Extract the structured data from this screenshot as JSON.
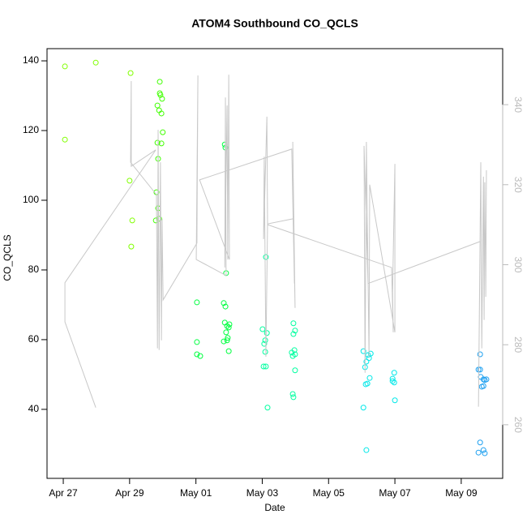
{
  "chart_data": {
    "type": "scatter",
    "title": "ATOM4 Southbound CO_QCLS",
    "xlabel": "Date",
    "ylabel": "CO_QCLS",
    "xlim": [
      -0.49,
      13.25
    ],
    "ylim": [
      20.2,
      143.5
    ],
    "y2lim": [
      246.6,
      354
    ],
    "xticks": [
      {
        "value": 0,
        "label": "Apr 27"
      },
      {
        "value": 2,
        "label": "Apr 29"
      },
      {
        "value": 4,
        "label": "May 01"
      },
      {
        "value": 6,
        "label": "May 03"
      },
      {
        "value": 8,
        "label": "May 05"
      },
      {
        "value": 10,
        "label": "May 07"
      },
      {
        "value": 12,
        "label": "May 09"
      }
    ],
    "yticks": [
      40,
      60,
      80,
      100,
      120,
      140
    ],
    "y2ticks": [
      260,
      280,
      300,
      320,
      340
    ],
    "series": [
      {
        "color": "#80ff00",
        "x": [
          0.05,
          0.05,
          0.98,
          2.03,
          2.0,
          2.08,
          2.05
        ],
        "values": [
          138.4,
          117.4,
          139.5,
          136.5,
          105.6,
          94.2,
          86.7
        ]
      },
      {
        "color": "#40ff00",
        "x": [
          2.91,
          2.91,
          2.93,
          2.98,
          2.84,
          2.89,
          2.96,
          3.0,
          2.96,
          2.84,
          2.86,
          2.81,
          2.86,
          2.89,
          2.79
        ],
        "values": [
          134,
          130.7,
          130.2,
          129.1,
          127.2,
          125.8,
          124.9,
          119.5,
          116.3,
          116.5,
          111.9,
          102.3,
          97.7,
          94.7,
          94.2
        ]
      },
      {
        "color": "#00ff40",
        "x": [
          4.03,
          4.03,
          4.03,
          4.13,
          4.87,
          4.89,
          4.91,
          4.84,
          4.89,
          4.87,
          4.94,
          4.99,
          5.01,
          4.91,
          4.94,
          4.84,
          4.99,
          4.96
        ],
        "values": [
          70.7,
          59.3,
          55.8,
          55.3,
          116,
          115.1,
          79.1,
          70.5,
          69.5,
          64.9,
          63.9,
          63.5,
          64.4,
          62.1,
          59.8,
          59.5,
          56.7,
          60.5
        ]
      },
      {
        "color": "#00ffa0",
        "x": [
          6.11,
          6.01,
          6.14,
          6.09,
          6.06,
          6.09,
          6.04,
          6.11,
          6.16,
          6.94,
          6.99,
          6.94,
          6.89,
          6.97,
          6.99,
          6.92,
          6.99,
          6.92,
          6.94
        ],
        "values": [
          83.7,
          63,
          61.9,
          59.8,
          58.8,
          56.5,
          52.3,
          52.3,
          40.5,
          64.7,
          62.6,
          61.6,
          56.3,
          57,
          55.8,
          55.3,
          51.2,
          44.4,
          43.5
        ]
      },
      {
        "color": "#00e8e8",
        "x": [
          9.05,
          9.14,
          9.22,
          9.19,
          9.27,
          9.1,
          9.24,
          9.17,
          9.12,
          9.05,
          9.14,
          9.93,
          9.98,
          9.93,
          9.98,
          10.0
        ],
        "values": [
          56.7,
          53.7,
          54.7,
          55.6,
          56,
          52.1,
          49,
          47.4,
          47.2,
          40.5,
          28.3,
          48.8,
          50.5,
          48.1,
          47.7,
          42.6
        ]
      },
      {
        "color": "#1ea0f0",
        "x": [
          12.57,
          12.52,
          12.57,
          12.59,
          12.67,
          12.76,
          12.71,
          12.62,
          12.67,
          12.57,
          12.67,
          12.52,
          12.71
        ],
        "values": [
          55.8,
          51.4,
          51.4,
          49.3,
          48.6,
          48.6,
          48.4,
          46.5,
          46.7,
          30.5,
          28.3,
          27.6,
          27.4
        ]
      },
      {
        "type": "line",
        "axis": "y2",
        "color": "#c8c8c8",
        "x": [
          0.98,
          0.05,
          0.05,
          2.79,
          2.05,
          2.05,
          2.03,
          2.81,
          2.84,
          2.86,
          2.89,
          2.93,
          2.96,
          2.98,
          3.01,
          4.03,
          4.06,
          4.01,
          4.91,
          4.89,
          4.87,
          4.94,
          4.96,
          4.99,
          5.01,
          4.11,
          6.89,
          6.97,
          6.92,
          6.99,
          6.94,
          6.16,
          6.11,
          6.06,
          6.04,
          6.14,
          6.16,
          9.9,
          9.95,
          9.93,
          10.0,
          10.0,
          9.24,
          9.22,
          9.14,
          9.1,
          9.07,
          9.19,
          12.57,
          12.52,
          12.59,
          12.62,
          12.67,
          12.69,
          12.71,
          12.74,
          12.76
        ],
        "values": [
          264.3,
          285.7,
          295.5,
          328.7,
          324.6,
          345.9,
          325.6,
          317.5,
          279.1,
          333.7,
          278.7,
          325.6,
          281.1,
          311.5,
          291.2,
          305.4,
          347.3,
          301.3,
          297.3,
          341.8,
          299.3,
          339.8,
          301.3,
          347.5,
          301.3,
          321.2,
          328.9,
          295.3,
          330.7,
          289.2,
          311.5,
          310.2,
          277.0,
          327.0,
          306.4,
          337.0,
          310.0,
          299.3,
          283.1,
          293.2,
          325.2,
          283.1,
          320.0,
          277.0,
          330.7,
          273.0,
          329.7,
          295.3,
          305.8,
          264.5,
          325.6,
          279.1,
          322.0,
          286.2,
          320.6,
          292.0,
          323.6
        ]
      }
    ]
  }
}
